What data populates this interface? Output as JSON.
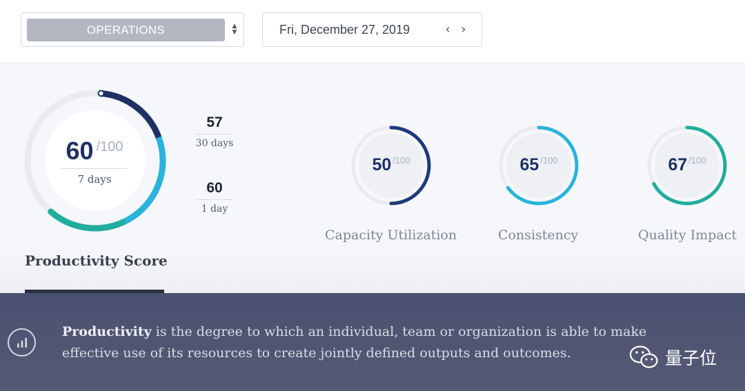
{
  "toolbar": {
    "team_select": {
      "value": "OPERATIONS"
    },
    "date": {
      "value": "Fri, December 27, 2019",
      "prev_icon": "chevron-left-icon",
      "next_icon": "chevron-right-icon"
    }
  },
  "productivity": {
    "score": "60",
    "max": "/100",
    "period": "7 days",
    "score_fraction": 0.6,
    "title": "Productivity Score",
    "stats": [
      {
        "value": "57",
        "period": "30 days"
      },
      {
        "value": "60",
        "period": "1 day"
      }
    ]
  },
  "metrics": [
    {
      "name": "Capacity Utilization",
      "score": "50",
      "max": "/100",
      "fraction": 0.5,
      "color": "#1f3a7a"
    },
    {
      "name": "Consistency",
      "score": "65",
      "max": "/100",
      "fraction": 0.65,
      "color": "#2ab3dc"
    },
    {
      "name": "Quality Impact",
      "score": "67",
      "max": "/100",
      "fraction": 0.67,
      "color": "#20ad9c"
    }
  ],
  "info": {
    "icon": "bar-chart-icon",
    "term": "Productivity",
    "definition": " is the degree to which an individual, team or organization is able to make effective use of its resources to create jointly defined outputs and outcomes."
  },
  "watermark": {
    "text": "量子位",
    "icon": "wechat-icon"
  },
  "colors": {
    "navy": "#1f3163",
    "cyan": "#2ab3dc",
    "teal": "#20ad9c",
    "track": "#e9ebf0"
  }
}
